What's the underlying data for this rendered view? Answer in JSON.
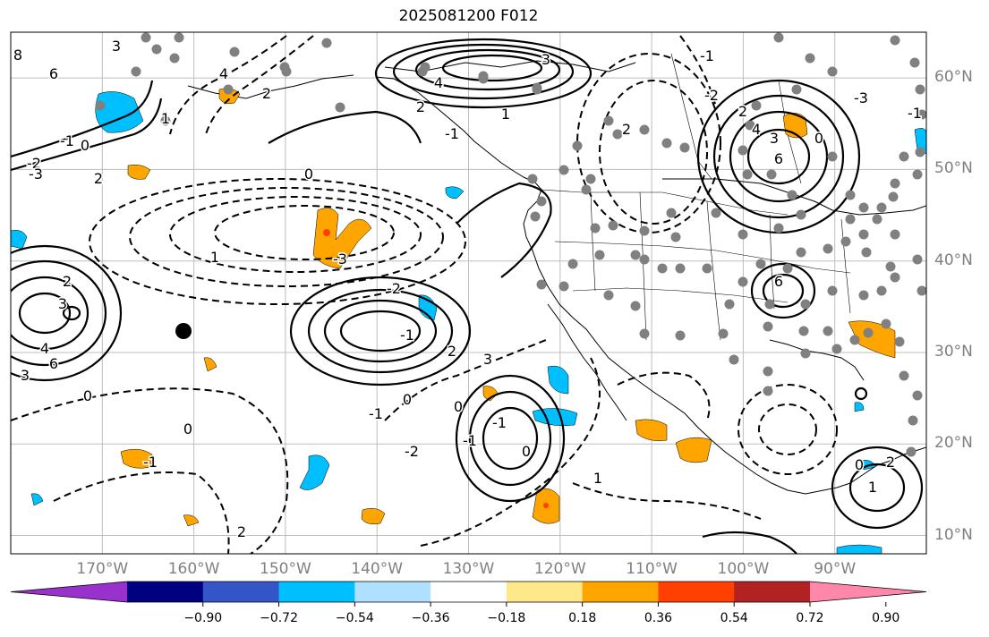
{
  "title": "2025081200 F012",
  "map": {
    "lon_range": [
      -180,
      -80
    ],
    "lat_range": [
      8,
      65
    ],
    "lon_ticks": [
      {
        "lon": -170,
        "label": "170°W"
      },
      {
        "lon": -160,
        "label": "160°W"
      },
      {
        "lon": -150,
        "label": "150°W"
      },
      {
        "lon": -140,
        "label": "140°W"
      },
      {
        "lon": -130,
        "label": "130°W"
      },
      {
        "lon": -120,
        "label": "120°W"
      },
      {
        "lon": -110,
        "label": "110°W"
      },
      {
        "lon": -100,
        "label": "100°W"
      },
      {
        "lon": -90,
        "label": "90°W"
      }
    ],
    "lat_ticks": [
      {
        "lat": 60,
        "label": "60°N"
      },
      {
        "lat": 50,
        "label": "50°N"
      },
      {
        "lat": 40,
        "label": "40°N"
      },
      {
        "lat": 30,
        "label": "30°N"
      },
      {
        "lat": 20,
        "label": "20°N"
      },
      {
        "lat": 10,
        "label": "10°N"
      }
    ],
    "contour_labels": [
      "8",
      "3",
      "6",
      "4",
      "2",
      "1",
      "0",
      "-1",
      "-2",
      "-3",
      "3",
      "4",
      "2",
      "1",
      "-1",
      "2",
      "3",
      "6",
      "2",
      "0",
      "-1",
      "-2",
      "-3",
      "-1",
      "2",
      "3",
      "4",
      "6",
      "3",
      "2",
      "1",
      "0",
      "-3",
      "-2",
      "-1",
      "2",
      "3",
      "0",
      "-1",
      "0",
      "-2",
      "-1",
      "0",
      "-1",
      "0",
      "2",
      "1",
      "0",
      "-1",
      "0",
      "1",
      "2",
      "6",
      "4"
    ]
  },
  "colorbar": {
    "labels": [
      "−0.90",
      "−0.72",
      "−0.54",
      "−0.36",
      "−0.18",
      "0.18",
      "0.36",
      "0.54",
      "0.72",
      "0.90"
    ],
    "colors": [
      "#9932cc",
      "#000080",
      "#3455c8",
      "#00bfff",
      "#b0e0ff",
      "#ffffff",
      "#ffe88a",
      "#ffa500",
      "#ff4000",
      "#b22222",
      "#ff88aa"
    ]
  }
}
